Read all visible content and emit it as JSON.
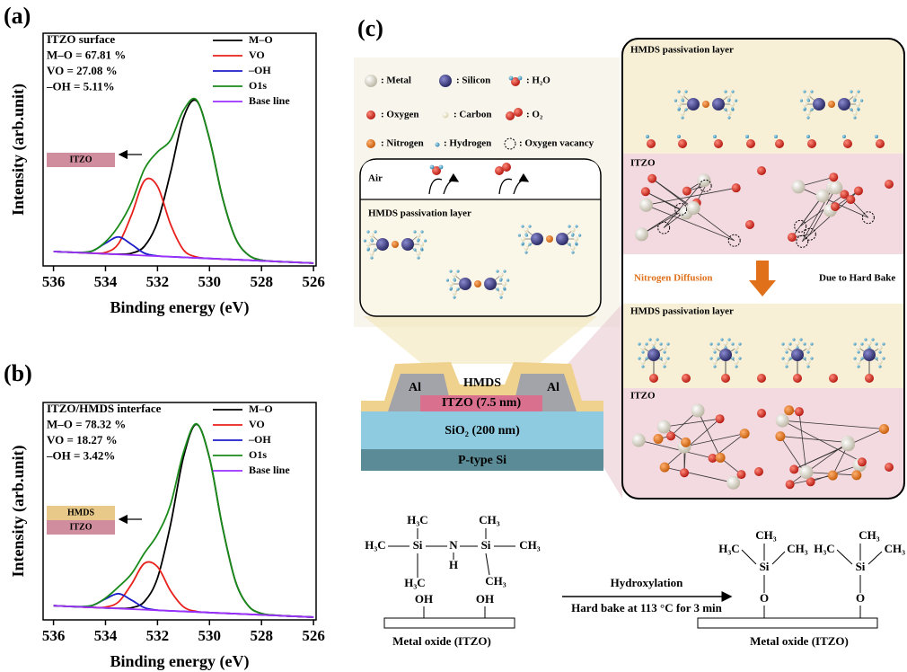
{
  "chart_data": [
    {
      "type": "line",
      "panel_label": "(a)",
      "annotations": [
        "ITZO surface",
        "M–O = 67.81 %",
        "VO = 27.08 %",
        "–OH = 5.11%"
      ],
      "inset_labels": [
        "ITZO"
      ],
      "inset_colors": [
        "#cf8d9d"
      ],
      "xlabel": "Binding energy (eV)",
      "ylabel": "Intensity (arb.unit)",
      "x": [
        536,
        535.5,
        535,
        534.5,
        534,
        533.5,
        533,
        532.5,
        532,
        531.5,
        531,
        530.5,
        530,
        529.5,
        529,
        528.5,
        528,
        527.5,
        527,
        526.5,
        526
      ],
      "xlim": [
        536.4,
        525.9
      ],
      "xticks": [
        536,
        534,
        532,
        530,
        528,
        526
      ],
      "ylim": [
        0,
        100
      ],
      "series": [
        {
          "name": "M–O",
          "color": "#000000",
          "values": [
            6.2,
            5.95,
            5.7,
            5.45,
            5.2,
            5.05,
            5.45,
            8.5,
            18.9,
            40.05,
            63.7,
            70.95,
            54.5,
            29.35,
            11.9,
            4.65,
            2.5,
            1.95,
            1.7,
            1.45,
            1.2
          ]
        },
        {
          "name": "VO",
          "color": "#e8201c",
          "values": [
            6.2,
            5.95,
            5.7,
            5.5,
            5.8,
            9.55,
            21.9,
            36.65,
            34.2,
            17.95,
            6.9,
            3.85,
            3.2,
            2.95,
            2.7,
            2.45,
            2.2,
            1.95,
            1.7,
            1.45,
            1.2
          ]
        },
        {
          "name": "–OH",
          "color": "#1d1dc8",
          "values": [
            6.2,
            5.95,
            5.8,
            6.45,
            9.75,
            12.45,
            9.25,
            5.45,
            4.3,
            3.95,
            3.7,
            3.45,
            3.2,
            2.95,
            2.7,
            2.45,
            2.2,
            1.95,
            1.7,
            1.45,
            1.2
          ]
        },
        {
          "name": "O1s",
          "color": "#1a8a1a",
          "values": [
            6.2,
            5.95,
            5.8,
            6.5,
            10.35,
            17.15,
            27.2,
            41.7,
            49.0,
            54.05,
            66.9,
            71.35,
            54.5,
            29.35,
            11.9,
            4.65,
            2.5,
            1.95,
            1.7,
            1.45,
            1.2
          ]
        },
        {
          "name": "Base line",
          "color": "#9b30ff",
          "values": [
            6.2,
            5.95,
            5.7,
            5.45,
            5.2,
            4.95,
            4.7,
            4.45,
            4.2,
            3.95,
            3.7,
            3.45,
            3.2,
            2.95,
            2.7,
            2.45,
            2.2,
            1.95,
            1.7,
            1.45,
            1.2
          ]
        }
      ]
    },
    {
      "type": "line",
      "panel_label": "(b)",
      "annotations": [
        "ITZO/HMDS interface",
        "M–O = 78.32 %",
        "VO = 18.27 %",
        "–OH = 3.42%"
      ],
      "inset_labels": [
        "HMDS",
        "ITZO"
      ],
      "inset_colors": [
        "#e9c98a",
        "#cf8d9d"
      ],
      "xlabel": "Binding energy (eV)",
      "ylabel": "Intensity (arb.unit)",
      "x": [
        536,
        535.5,
        535,
        534.5,
        534,
        533.5,
        533,
        532.5,
        532,
        531.5,
        531,
        530.5,
        530,
        529.5,
        529,
        528.5,
        528,
        527.5,
        527,
        526.5,
        526
      ],
      "xlim": [
        536.4,
        525.9
      ],
      "xticks": [
        536,
        534,
        532,
        530,
        528,
        526
      ],
      "ylim": [
        0,
        95
      ],
      "series": [
        {
          "name": "M–O",
          "color": "#000000",
          "values": [
            6.2,
            5.95,
            5.7,
            5.45,
            5.2,
            5.05,
            5.3,
            8.05,
            18.3,
            41.55,
            71.2,
            85.45,
            70.7,
            40.55,
            16.8,
            6.05,
            2.8,
            2.05,
            1.7,
            1.45,
            1.2
          ]
        },
        {
          "name": "VO",
          "color": "#e8201c",
          "values": [
            6.2,
            5.95,
            5.7,
            5.48,
            5.59,
            7.85,
            15.6,
            24.75,
            23.2,
            12.75,
            5.7,
            3.69,
            3.2,
            2.95,
            2.7,
            2.45,
            2.2,
            1.95,
            1.7,
            1.45,
            1.2
          ]
        },
        {
          "name": "–OH",
          "color": "#1d1dc8",
          "values": [
            6.2,
            5.95,
            5.77,
            6.33,
            9.15,
            11.45,
            8.65,
            5.33,
            4.27,
            3.95,
            3.7,
            3.45,
            3.2,
            2.95,
            2.7,
            2.45,
            2.2,
            1.95,
            1.7,
            1.45,
            1.2
          ]
        },
        {
          "name": "O1s",
          "color": "#1a8a1a",
          "values": [
            6.2,
            5.95,
            5.77,
            6.36,
            9.54,
            14.45,
            20.15,
            29.23,
            37.37,
            50.35,
            73.2,
            85.69,
            70.7,
            40.55,
            16.8,
            6.05,
            2.8,
            2.05,
            1.7,
            1.45,
            1.2
          ]
        },
        {
          "name": "Base line",
          "color": "#9b30ff",
          "values": [
            6.2,
            5.95,
            5.7,
            5.45,
            5.2,
            4.95,
            4.7,
            4.45,
            4.2,
            3.95,
            3.7,
            3.45,
            3.2,
            2.95,
            2.7,
            2.45,
            2.2,
            1.95,
            1.7,
            1.45,
            1.2
          ]
        }
      ]
    }
  ],
  "panel_c": {
    "label": "(c)",
    "legend": [
      ": Metal",
      ": Silicon",
      ": H₂O",
      ": Oxygen",
      ": Carbon",
      ": O₂",
      ": Nitrogen",
      ": Hydrogen",
      ": Oxygen vacancy"
    ],
    "air_box": {
      "air": "Air",
      "layer": "HMDS passivation layer"
    },
    "device": {
      "al_left": "Al",
      "hmds": "HMDS",
      "al_right": "Al",
      "itzo": "ITZO (7.5 nm)",
      "sio2": "SiO₂ (200 nm)",
      "substrate": "P-type Si"
    },
    "mechanism": {
      "top_layer": "HMDS passivation layer",
      "top_itzo": "ITZO",
      "diffusion": "Nitrogen Diffusion",
      "cause": "Due to Hard Bake",
      "bottom_layer": "HMDS passivation layer",
      "bottom_itzo": "ITZO"
    },
    "reaction": {
      "reactant": [
        "H₃C",
        "CH₃",
        "H₃C",
        "Si",
        "N",
        "Si",
        "CH₃",
        "H",
        "H₃C",
        "CH₃",
        "OH",
        "OH"
      ],
      "reactant_label": "Metal oxide (ITZO)",
      "conditions": [
        "Hydroxylation",
        "Hard bake at 113 °C for 3 min"
      ],
      "product": [
        "CH₃",
        "H₃C",
        "Si",
        "CH₃",
        "H₃C",
        "CH₃",
        "Si",
        "CH₃",
        "O",
        "O"
      ],
      "product_label": "Metal oxide (ITZO)"
    }
  }
}
